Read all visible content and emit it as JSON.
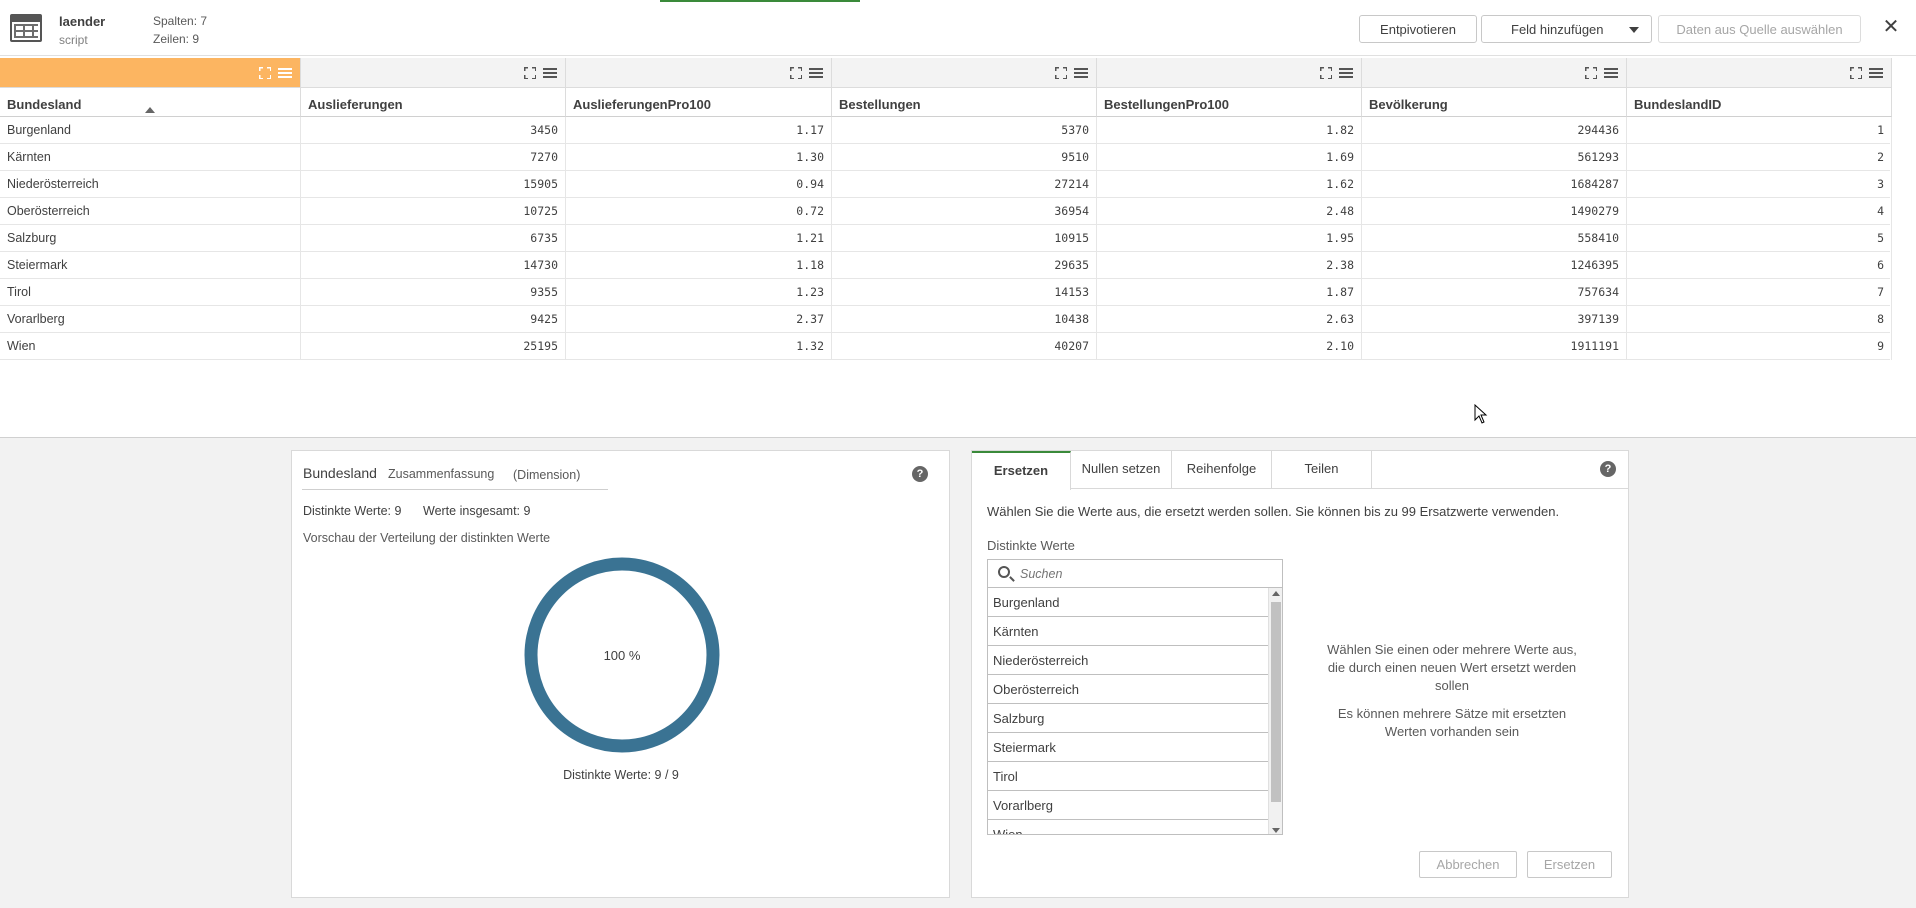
{
  "header": {
    "table_name": "laender",
    "table_source": "script",
    "columns_meta": "Spalten: 7",
    "rows_meta": "Zeilen: 9",
    "unpivot_label": "Entpivotieren",
    "add_field_label": "Feld hinzufügen",
    "select_data_label": "Daten aus Quelle auswählen"
  },
  "table": {
    "columns": [
      "Bundesland",
      "Auslieferungen",
      "AuslieferungenPro100",
      "Bestellungen",
      "BestellungenPro100",
      "Bevölkerung",
      "BundeslandID"
    ],
    "rows": [
      [
        "Burgenland",
        "3450",
        "1.17",
        "5370",
        "1.82",
        "294436",
        "1"
      ],
      [
        "Kärnten",
        "7270",
        "1.30",
        "9510",
        "1.69",
        "561293",
        "2"
      ],
      [
        "Niederösterreich",
        "15905",
        "0.94",
        "27214",
        "1.62",
        "1684287",
        "3"
      ],
      [
        "Oberösterreich",
        "10725",
        "0.72",
        "36954",
        "2.48",
        "1490279",
        "4"
      ],
      [
        "Salzburg",
        "6735",
        "1.21",
        "10915",
        "1.95",
        "558410",
        "5"
      ],
      [
        "Steiermark",
        "14730",
        "1.18",
        "29635",
        "2.38",
        "1246395",
        "6"
      ],
      [
        "Tirol",
        "9355",
        "1.23",
        "14153",
        "1.87",
        "757634",
        "7"
      ],
      [
        "Vorarlberg",
        "9425",
        "2.37",
        "10438",
        "2.63",
        "397139",
        "8"
      ],
      [
        "Wien",
        "25195",
        "1.32",
        "40207",
        "2.10",
        "1911191",
        "9"
      ]
    ]
  },
  "summary": {
    "field": "Bundesland",
    "tab_summary": "Zusammenfassung",
    "type": "(Dimension)",
    "distinct": "Distinkte Werte: 9",
    "total": "Werte insgesamt: 9",
    "preview": "Vorschau der Verteilung der distinkten Werte",
    "donut_label": "100 %",
    "donut_fraction": 1.0,
    "donut_color": "#3a7393",
    "footer": "Distinkte Werte: 9 / 9"
  },
  "replace": {
    "tabs": [
      "Ersetzen",
      "Nullen setzen",
      "Reihenfolge",
      "Teilen"
    ],
    "description": "Wählen Sie die Werte aus, die ersetzt werden sollen. Sie können bis zu 99 Ersatzwerte verwenden.",
    "list_title": "Distinkte Werte",
    "search_placeholder": "Suchen",
    "values": [
      "Burgenland",
      "Kärnten",
      "Niederösterreich",
      "Oberösterreich",
      "Salzburg",
      "Steiermark",
      "Tirol",
      "Vorarlberg",
      "Wien"
    ],
    "hint1": "Wählen Sie einen oder mehrere Werte aus, die durch einen neuen Wert ersetzt werden sollen",
    "hint2": "Es können mehrere Sätze mit ersetzten Werten vorhanden sein",
    "cancel_label": "Abbrechen",
    "replace_label": "Ersetzen"
  },
  "colors": {
    "selected_column": "#fcb561",
    "accent_green": "#3a8a3a"
  }
}
